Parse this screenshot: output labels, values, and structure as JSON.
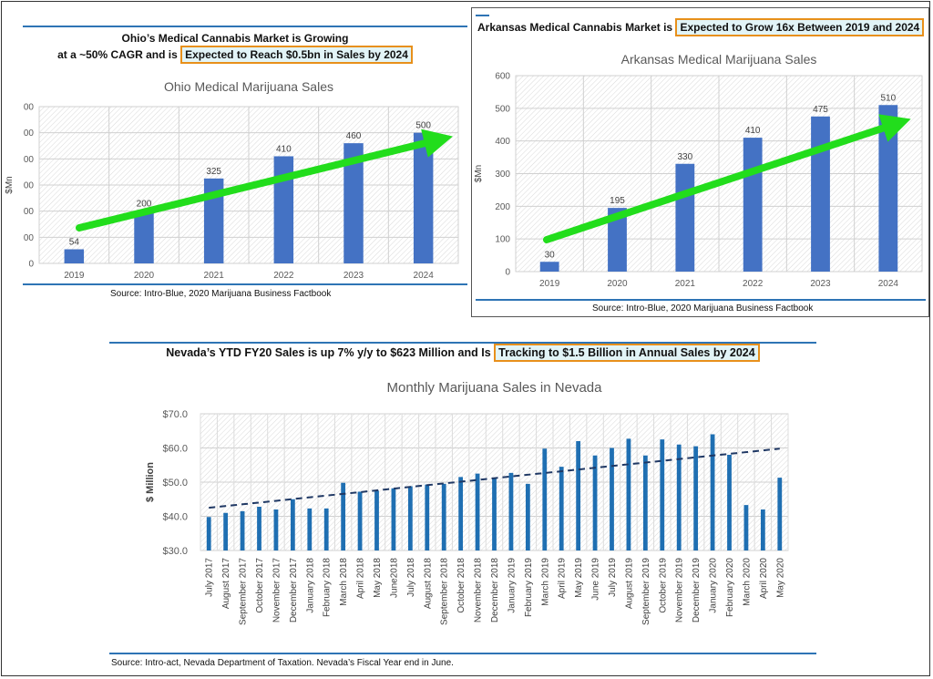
{
  "ohio": {
    "heading_line1": "Ohio’s Medical Cannabis Market is Growing",
    "heading_line2_pre": "at a ~50% CAGR and is ",
    "heading_line2_hl": "Expected to Reach $0.5bn in Sales by 2024",
    "source": "Source: Intro-Blue, 2020 Marijuana Business Factbook"
  },
  "ark": {
    "heading_pre": "Arkansas Medical Cannabis Market is ",
    "heading_hl": "Expected to Grow 16x Between 2019 and 2024",
    "source": "Source: Intro-Blue, 2020 Marijuana Business Factbook"
  },
  "nevada": {
    "heading_pre": "Nevada’s YTD FY20 Sales is up 7% y/y to $623 Million and Is ",
    "heading_hl": "Tracking to $1.5 Billion in Annual Sales by 2024",
    "source": "Source: Intro-act, Nevada Department of Taxation. Nevada’s Fiscal Year end in June."
  },
  "colors": {
    "bar": "#4472c4",
    "nevada_bar": "#1f6fb2",
    "arrow": "#22dd1c",
    "rule": "#2e74b5",
    "highlight_border": "#e8901b",
    "highlight_fill": "#e2f4f7",
    "trend": "#1f3864"
  },
  "chart_data": [
    {
      "type": "bar",
      "title": "Ohio Medical Marijuana Sales",
      "ylabel": "$Mn",
      "ytick_labels": [
        "0",
        "00",
        "00",
        "00",
        "00",
        "00",
        "00"
      ],
      "categories": [
        "2019",
        "2020",
        "2021",
        "2022",
        "2023",
        "2024"
      ],
      "values": [
        54,
        200,
        325,
        410,
        460,
        500
      ],
      "data_labels": [
        "54",
        "200",
        "325",
        "410",
        "460",
        "500"
      ],
      "ylim": [
        0,
        600
      ],
      "grid": "hatched plot area",
      "annotation": "green trend arrow"
    },
    {
      "type": "bar",
      "title": "Arkansas Medical Marijuana Sales",
      "ylabel": "$Mn",
      "yticks": [
        "0",
        "100",
        "200",
        "300",
        "400",
        "500",
        "600"
      ],
      "categories": [
        "2019",
        "2020",
        "2021",
        "2022",
        "2023",
        "2024"
      ],
      "values": [
        30,
        195,
        330,
        410,
        475,
        510
      ],
      "data_labels": [
        "30",
        "195",
        "330",
        "410",
        "475",
        "510"
      ],
      "ylim": [
        0,
        600
      ],
      "grid": "hatched plot area",
      "annotation": "green trend arrow"
    },
    {
      "type": "bar",
      "title": "Monthly Marijuana Sales in Nevada",
      "ylabel": "$ Million",
      "yticks": [
        "$30.0",
        "$40.0",
        "$50.0",
        "$60.0",
        "$70.0"
      ],
      "ylim": [
        30,
        70
      ],
      "categories": [
        "July 2017",
        "August 2017",
        "September 2017",
        "October 2017",
        "November 2017",
        "December 2017",
        "January 2018",
        "February 2018",
        "March 2018",
        "April 2018",
        "May 2018",
        "June2018",
        "July 2018",
        "August 2018",
        "September 2018",
        "October 2018",
        "November 2018",
        "December 2018",
        "January 2019",
        "February 2019",
        "March 2019",
        "April 2019",
        "May 2019",
        "June 2019",
        "July 2019",
        "August 2019",
        "September 2019",
        "October 2019",
        "November 2019",
        "December 2019",
        "January 2020",
        "February 2020",
        "March 2020",
        "April 2020",
        "May 2020"
      ],
      "values": [
        39.8,
        41.0,
        41.5,
        42.8,
        42.0,
        45.0,
        42.3,
        42.3,
        49.8,
        47.2,
        47.5,
        48.2,
        48.8,
        49.3,
        49.5,
        51.5,
        52.5,
        51.3,
        52.7,
        49.5,
        59.8,
        54.5,
        62.0,
        57.8,
        60.0,
        62.7,
        57.8,
        62.5,
        61.0,
        60.5,
        64.0,
        58.0,
        43.3,
        42.0,
        51.3
      ],
      "trendline": {
        "style": "dashed linear",
        "start": 42.5,
        "end": 59.8
      },
      "grid": "hatched plot area"
    }
  ]
}
